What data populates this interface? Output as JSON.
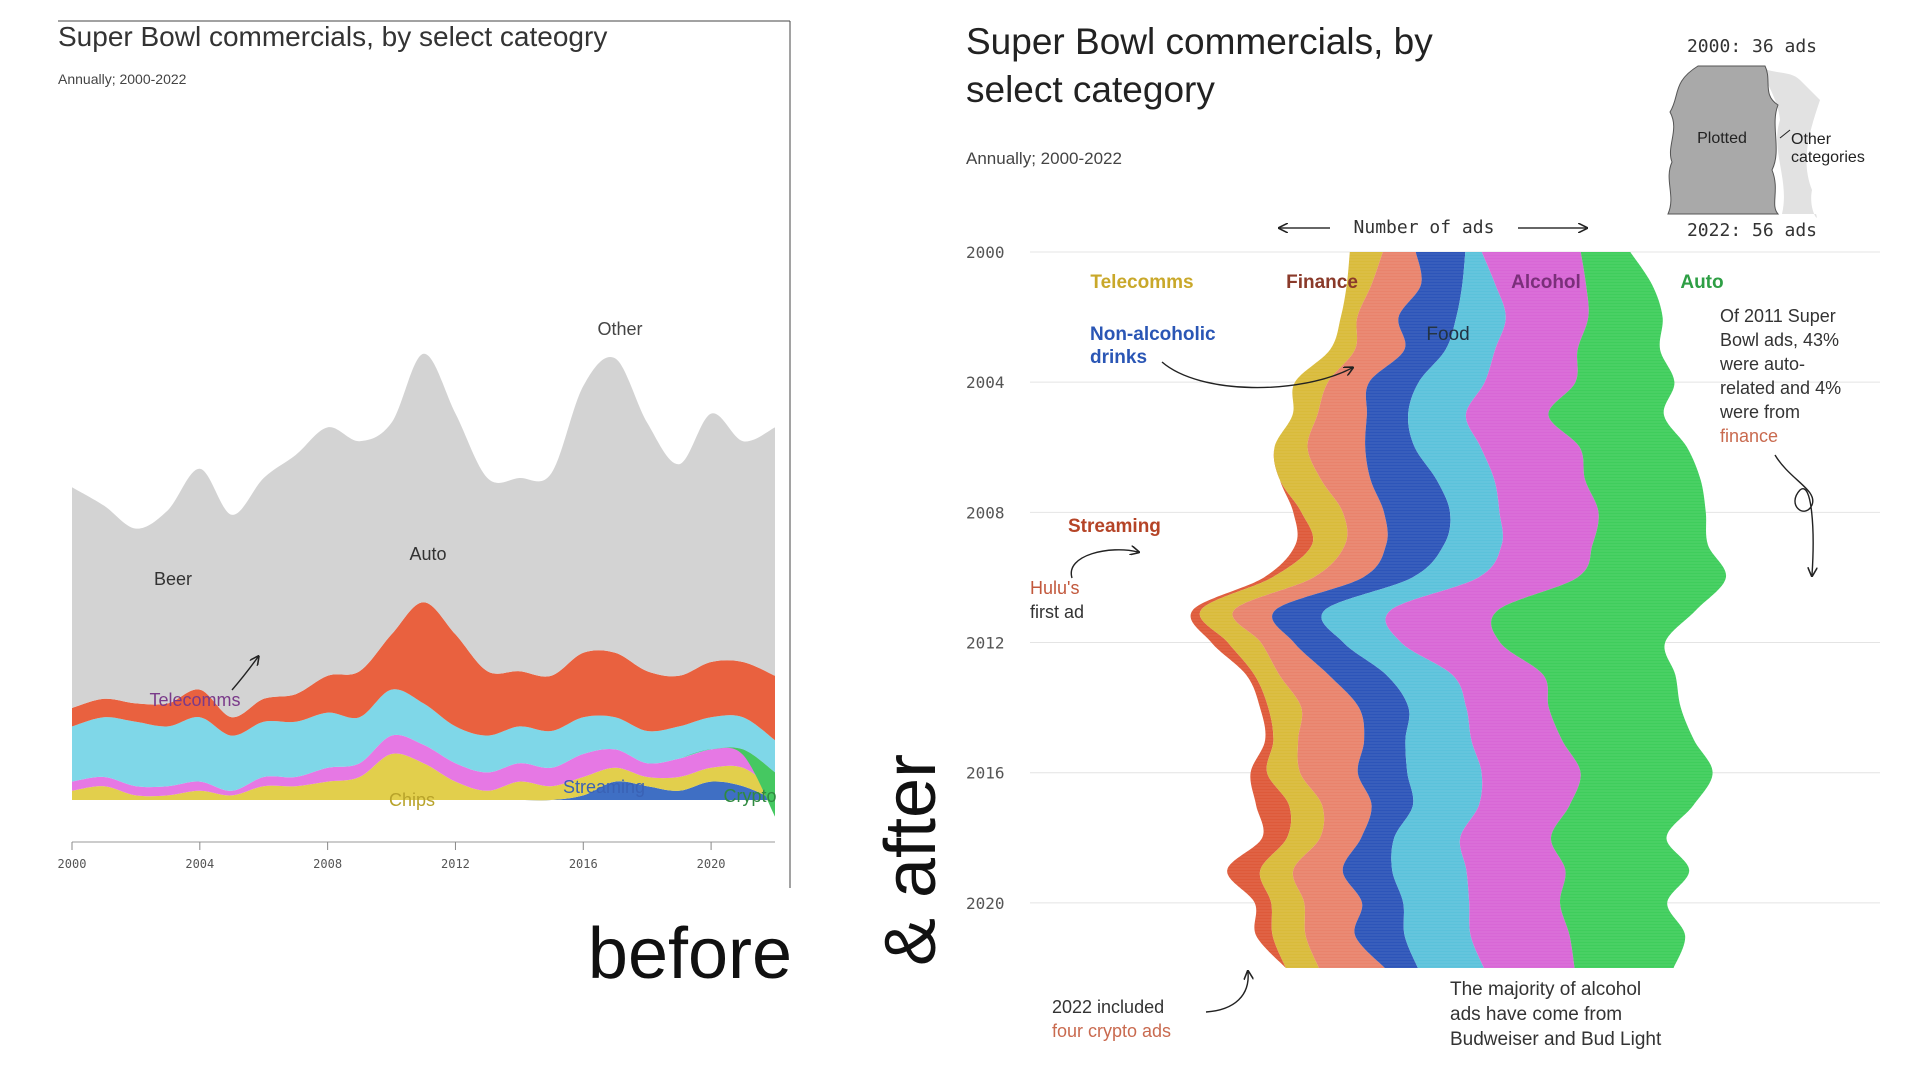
{
  "colors": {
    "other_gray": "#d3d3d3",
    "auto_before": "#e9613f",
    "beer": "#7fd7e8",
    "telecomm_before": "#e678e4",
    "chips": "#e2cf4c",
    "streaming_before": "#3f6fc4",
    "crypto": "#45c861",
    "telecomm_after": "#d9bb3a",
    "finance": "#e9836c",
    "nonalc": "#2d55b9",
    "food": "#5bc2db",
    "alcohol": "#d867d6",
    "auto_after": "#3fcd5c",
    "streaming_after": "#de5a3a"
  },
  "captions": {
    "before": "before",
    "after": "& after"
  },
  "before": {
    "title": "Super Bowl commercials, by select cateogry",
    "subtitle": "Annually; 2000-2022",
    "labels": {
      "other": "Other",
      "auto": "Auto",
      "beer": "Beer",
      "telecomms": "Telecomms",
      "chips": "Chips",
      "streaming": "Streaming",
      "crypto": "Crypto"
    }
  },
  "after": {
    "title_line1": "Super Bowl commercials, by",
    "title_line2": "select category",
    "subtitle": "Annually; 2000-2022",
    "axis_title": "Number of ads",
    "legend": {
      "top": "2000: 36 ads",
      "bottom": "2022: 56 ads",
      "plotted": "Plotted",
      "other_line1": "Other",
      "other_line2": "categories"
    },
    "labels": {
      "telecomms": "Telecomms",
      "finance": "Finance",
      "alcohol": "Alcohol",
      "auto": "Auto",
      "nonalc_line1": "Non-alcoholic",
      "nonalc_line2": "drinks",
      "food": "Food",
      "streaming": "Streaming"
    },
    "annotations": {
      "hulu_line1": "Hulu's",
      "hulu_line2": "first ad",
      "note2011": [
        "Of 2011 Super",
        "Bowl ads, 43%",
        "were auto-",
        "related and 4%",
        "were from",
        "finance"
      ],
      "crypto_line1": "2022 included",
      "crypto_line2": "four crypto ads",
      "alcohol_note": [
        "The majority of alcohol",
        "ads have come from",
        "Budweiser and Bud Light"
      ]
    }
  },
  "chart_data": [
    {
      "type": "area",
      "title": "Super Bowl commercials, by select cateogry",
      "subtitle": "Annually; 2000-2022",
      "x": [
        2000,
        2001,
        2002,
        2003,
        2004,
        2005,
        2006,
        2007,
        2008,
        2009,
        2010,
        2011,
        2012,
        2013,
        2014,
        2015,
        2016,
        2017,
        2018,
        2019,
        2020,
        2021,
        2022
      ],
      "x_ticks": [
        2000,
        2004,
        2008,
        2012,
        2016,
        2020
      ],
      "series_order_bottom_to_top": [
        "Streaming",
        "Chips",
        "Telecomms",
        "Beer",
        "Auto",
        "Other",
        "Crypto"
      ],
      "series": [
        {
          "name": "Streaming",
          "values": [
            0,
            0,
            0,
            0,
            0,
            0,
            0,
            0,
            0,
            0,
            0,
            0,
            0,
            0,
            0,
            0,
            0.5,
            2,
            1.5,
            1,
            2,
            1.5,
            0
          ]
        },
        {
          "name": "Chips",
          "values": [
            1,
            1.5,
            0.5,
            0.5,
            1,
            0.5,
            1.5,
            1.5,
            2,
            2.5,
            5,
            4,
            2,
            1,
            2,
            1.5,
            2,
            1.5,
            1,
            1.5,
            1.5,
            2,
            1
          ]
        },
        {
          "name": "Telecomms",
          "values": [
            1,
            1,
            1,
            1,
            1,
            0.5,
            1,
            1,
            1.5,
            1.5,
            2,
            2,
            2,
            2,
            2,
            2,
            2.5,
            2,
            1.5,
            2,
            2,
            2,
            2
          ]
        },
        {
          "name": "Beer",
          "values": [
            6,
            6.5,
            7,
            6.5,
            7,
            6,
            6,
            6,
            6,
            5,
            5,
            4.5,
            4,
            4,
            4,
            4,
            4,
            3.5,
            3.5,
            3.5,
            3.5,
            3.5,
            3.5
          ]
        },
        {
          "name": "Auto",
          "values": [
            2,
            2,
            2,
            2.5,
            3,
            2,
            2.5,
            3,
            4,
            5,
            6,
            11,
            10,
            7,
            6,
            6,
            7,
            7,
            6.5,
            5.5,
            6,
            6,
            7
          ]
        },
        {
          "name": "Other",
          "values": [
            24,
            21,
            19,
            21,
            24,
            22,
            24,
            26,
            27,
            25,
            23,
            27,
            24,
            21,
            21,
            22,
            29,
            32,
            27,
            23,
            27,
            24,
            27
          ]
        },
        {
          "name": "Crypto",
          "values": [
            0,
            0,
            0,
            0,
            0,
            0,
            0,
            0,
            0,
            0,
            0,
            0,
            0,
            0,
            0,
            0,
            0,
            0,
            0,
            0,
            0,
            0.5,
            4
          ]
        }
      ]
    },
    {
      "type": "area",
      "title": "Super Bowl commercials, by select category",
      "subtitle": "Annually; 2000-2022",
      "orientation": "vertical streamgraph, years on y-axis",
      "y": [
        2000,
        2001,
        2002,
        2003,
        2004,
        2005,
        2006,
        2007,
        2008,
        2009,
        2010,
        2011,
        2012,
        2013,
        2014,
        2015,
        2016,
        2017,
        2018,
        2019,
        2020,
        2021,
        2022
      ],
      "y_ticks": [
        2000,
        2004,
        2008,
        2012,
        2016,
        2020
      ],
      "axis_label": "Number of ads",
      "totals": {
        "2000": 36,
        "2022": 56
      },
      "series_order_left_to_right": [
        "Streaming",
        "Telecomms",
        "Finance",
        "Non-alcoholic drinks",
        "Food",
        "Alcohol",
        "Auto"
      ],
      "series": [
        {
          "name": "Streaming",
          "values": [
            0,
            0,
            0,
            0,
            0,
            0,
            0,
            0,
            0.5,
            1,
            0.5,
            0.5,
            1,
            0.5,
            0.5,
            0.5,
            1,
            2,
            1.5,
            2,
            1,
            1,
            0
          ]
        },
        {
          "name": "Telecomms",
          "values": [
            2,
            1.5,
            1,
            1.5,
            2,
            1.5,
            2,
            2.5,
            2.5,
            2,
            2.5,
            2,
            2,
            1.5,
            2,
            1.5,
            2,
            2,
            2,
            2,
            2,
            2,
            2
          ]
        },
        {
          "name": "Finance",
          "values": [
            2,
            3,
            2.5,
            3,
            2.5,
            3,
            3.5,
            3,
            2.5,
            2.5,
            3,
            2.5,
            2,
            3,
            3.5,
            4,
            3.5,
            3,
            2.5,
            3,
            3.5,
            3,
            4
          ]
        },
        {
          "name": "Non-alcoholic drinks",
          "values": [
            3,
            2.5,
            3.5,
            2.5,
            3,
            2.5,
            3,
            4,
            4,
            3.5,
            3,
            3,
            3,
            3.5,
            3,
            2.5,
            3,
            2.5,
            2,
            3,
            2.5,
            3,
            2
          ]
        },
        {
          "name": "Food",
          "values": [
            1,
            2,
            3,
            3,
            4,
            3.5,
            4,
            3.5,
            3,
            3.5,
            4,
            4,
            3.5,
            4,
            3.5,
            4,
            4.5,
            4,
            4,
            4.5,
            4,
            4,
            4
          ]
        },
        {
          "name": "Alcohol",
          "values": [
            6,
            5.5,
            5,
            5,
            5.5,
            5,
            6,
            5.5,
            6,
            5.5,
            6,
            6.5,
            6,
            5.5,
            5,
            5.5,
            6,
            5.5,
            5.5,
            6,
            5.5,
            6,
            5.5
          ]
        },
        {
          "name": "Auto",
          "values": [
            3,
            4,
            4.5,
            5,
            6,
            7,
            6.5,
            7,
            6.5,
            7,
            9,
            12,
            10,
            8,
            8,
            8,
            8,
            7.5,
            7,
            7.5,
            6.5,
            7,
            6
          ]
        }
      ]
    }
  ]
}
